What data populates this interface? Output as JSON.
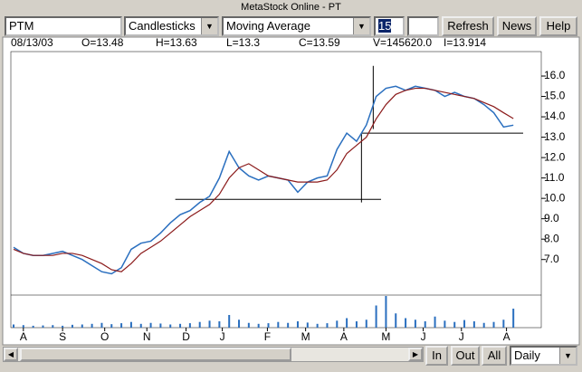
{
  "window": {
    "title": "MetaStock Online - PT"
  },
  "toolbar": {
    "symbol": "PTM",
    "chart_style": "Candlesticks",
    "indicator": "Moving Average",
    "period": "15",
    "buttons": [
      "Refresh",
      "News",
      "Help"
    ]
  },
  "info": [
    "08/13/03",
    "O=13.48",
    "H=13.63",
    "L=13.3",
    "C=13.59",
    "V=145620.0",
    "I=13.914"
  ],
  "chart": {
    "type": "line",
    "xlim": [
      0,
      52
    ],
    "xticks": [
      {
        "value": 1,
        "label": "A"
      },
      {
        "value": 5,
        "label": "S"
      },
      {
        "value": 9.3,
        "label": "O"
      },
      {
        "value": 13.6,
        "label": "N"
      },
      {
        "value": 17.6,
        "label": "D"
      },
      {
        "value": 21.3,
        "label": "J"
      },
      {
        "value": 25.9,
        "label": "F"
      },
      {
        "value": 29.8,
        "label": "M"
      },
      {
        "value": 33.7,
        "label": "A"
      },
      {
        "value": 38,
        "label": "M"
      },
      {
        "value": 41.8,
        "label": "J"
      },
      {
        "value": 45.7,
        "label": "J"
      },
      {
        "value": 50.3,
        "label": "A"
      }
    ],
    "ylim": [
      5.3,
      17.2
    ],
    "yticks": [
      {
        "value": 7,
        "label": "7.0"
      },
      {
        "value": 8,
        "label": "8.0"
      },
      {
        "value": 9,
        "label": "9.0"
      },
      {
        "value": 10,
        "label": "10.0"
      },
      {
        "value": 11,
        "label": "11.0"
      },
      {
        "value": 12,
        "label": "12.0"
      },
      {
        "value": 13,
        "label": "13.0"
      },
      {
        "value": 14,
        "label": "14.0"
      },
      {
        "value": 15,
        "label": "15.0"
      },
      {
        "value": 16,
        "label": "16.0"
      }
    ],
    "x": [
      0,
      1,
      2,
      3,
      4,
      5,
      6,
      7,
      8,
      9,
      10,
      11,
      12,
      13,
      14,
      15,
      16,
      17,
      18,
      19,
      20,
      21,
      22,
      23,
      24,
      25,
      26,
      27,
      28,
      29,
      30,
      31,
      32,
      33,
      34,
      35,
      36,
      37,
      38,
      39,
      40,
      41,
      42,
      43,
      44,
      45,
      46,
      47,
      48,
      49,
      50,
      51
    ],
    "series": [
      {
        "color": "#2a6fbf",
        "values": [
          7.6,
          7.3,
          7.2,
          7.2,
          7.3,
          7.4,
          7.2,
          7.0,
          6.7,
          6.4,
          6.3,
          6.6,
          7.5,
          7.8,
          7.9,
          8.3,
          8.8,
          9.2,
          9.4,
          9.8,
          10.1,
          11.0,
          12.3,
          11.5,
          11.1,
          10.9,
          11.1,
          11.0,
          10.9,
          10.3,
          10.8,
          11.0,
          11.1,
          12.4,
          13.2,
          12.8,
          13.6,
          15.0,
          15.4,
          15.5,
          15.3,
          15.5,
          15.4,
          15.3,
          15.0,
          15.2,
          15.0,
          14.9,
          14.6,
          14.2,
          13.5,
          13.59
        ]
      },
      {
        "color": "#8b1a1a",
        "values": [
          7.5,
          7.3,
          7.2,
          7.2,
          7.2,
          7.3,
          7.3,
          7.2,
          7.0,
          6.8,
          6.5,
          6.4,
          6.8,
          7.3,
          7.6,
          7.9,
          8.3,
          8.7,
          9.1,
          9.4,
          9.7,
          10.2,
          11.0,
          11.5,
          11.7,
          11.4,
          11.1,
          11.0,
          10.9,
          10.8,
          10.8,
          10.8,
          10.9,
          11.4,
          12.2,
          12.6,
          13.0,
          13.9,
          14.6,
          15.1,
          15.3,
          15.4,
          15.4,
          15.3,
          15.2,
          15.1,
          15.0,
          14.9,
          14.7,
          14.5,
          14.2,
          13.914
        ]
      }
    ],
    "volume": {
      "ylim": [
        0,
        100
      ],
      "values": [
        10,
        8,
        6,
        7,
        8,
        6,
        9,
        10,
        12,
        15,
        11,
        14,
        18,
        12,
        15,
        13,
        10,
        12,
        14,
        18,
        22,
        20,
        40,
        25,
        15,
        12,
        14,
        18,
        15,
        20,
        16,
        12,
        14,
        22,
        30,
        20,
        25,
        70,
        100,
        45,
        30,
        25,
        20,
        35,
        22,
        18,
        24,
        20,
        15,
        18,
        25,
        60
      ]
    },
    "trendlines": [
      {
        "x": [
          16.5,
          37.5
        ],
        "y": [
          9.95,
          9.95
        ]
      },
      {
        "x": [
          35.5,
          52
        ],
        "y": [
          13.2,
          13.2
        ]
      },
      {
        "x": [
          35.5,
          35.5
        ],
        "y": [
          9.8,
          13.2
        ]
      },
      {
        "x": [
          36.7,
          36.7
        ],
        "y": [
          13.4,
          16.5
        ]
      }
    ]
  },
  "bottom": {
    "buttons": [
      "In",
      "Out",
      "All"
    ],
    "period": "Daily"
  }
}
